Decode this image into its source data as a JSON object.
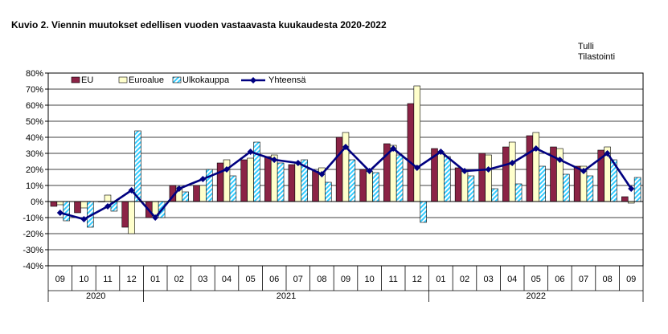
{
  "title": "Kuvio  2. Viennin  muutokset edellisen vuoden  vastaavasta kuukaudesta 2020-2022",
  "source": [
    "Tulli",
    "Tilastointi"
  ],
  "colors": {
    "eu": "#8B2346",
    "euroalue": "#FFFFCC",
    "ulkokauppa_stripe": "#33CCFF",
    "yhteensa": "#000080"
  },
  "chart_data": {
    "type": "bar",
    "title": "Kuvio  2. Viennin  muutokset edellisen vuoden  vastaavasta kuukaudesta 2020-2022",
    "ylim": [
      -40,
      80
    ],
    "ytick_step": 10,
    "ytick_labels": [
      "80%",
      "70%",
      "60%",
      "50%",
      "40%",
      "30%",
      "20%",
      "10%",
      "0%",
      "-10%",
      "-20%",
      "-30%",
      "-40%"
    ],
    "grid": true,
    "legend": "top-left",
    "categories": [
      "09",
      "10",
      "11",
      "12",
      "01",
      "02",
      "03",
      "04",
      "05",
      "06",
      "07",
      "08",
      "09",
      "10",
      "11",
      "12",
      "01",
      "02",
      "03",
      "04",
      "05",
      "06",
      "07",
      "08",
      "09"
    ],
    "years": [
      {
        "label": "2020",
        "span": 4
      },
      {
        "label": "2021",
        "span": 12
      },
      {
        "label": "2022",
        "span": 9
      }
    ],
    "series": [
      {
        "name": "EU",
        "kind": "bar",
        "values": [
          -3,
          -7,
          0,
          -16,
          -10,
          10,
          10,
          24,
          26,
          28,
          23,
          19,
          40,
          20,
          36,
          61,
          33,
          21,
          30,
          34,
          41,
          34,
          22,
          32,
          3
        ]
      },
      {
        "name": "Euroalue",
        "kind": "bar",
        "values": [
          -2,
          -4,
          4,
          -20,
          -9,
          9,
          10,
          26,
          27,
          29,
          24,
          21,
          43,
          19,
          35,
          72,
          31,
          19,
          29,
          37,
          43,
          33,
          22,
          34,
          -1
        ]
      },
      {
        "name": "Ulkokauppa",
        "kind": "bar",
        "values": [
          -12,
          -16,
          -6,
          44,
          -10,
          6,
          20,
          16,
          37,
          24,
          26,
          12,
          26,
          18,
          29,
          -13,
          28,
          16,
          8,
          11,
          22,
          17,
          16,
          26,
          15
        ]
      },
      {
        "name": "Yhteensä",
        "kind": "line",
        "values": [
          -7,
          -11,
          -3,
          7,
          -10,
          8,
          14,
          20,
          31,
          26,
          24,
          17,
          34,
          19,
          33,
          21,
          31,
          19,
          20,
          24,
          33,
          26,
          19,
          30,
          8
        ]
      }
    ]
  }
}
